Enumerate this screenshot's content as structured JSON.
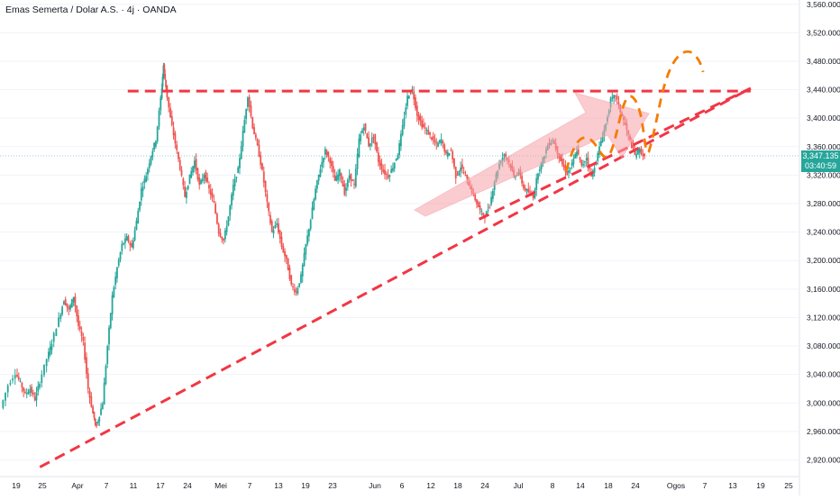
{
  "title": "Emas Semerta / Dolar A.S. · 4j · OANDA",
  "colors": {
    "up": "#26a69a",
    "down": "#ef5350",
    "trendline": "#f23645",
    "projection": "#f57c00",
    "arrow_fill": "#f7a1a8",
    "current_price": "#26a69a"
  },
  "current_price": {
    "value": "3,347.135",
    "countdown": "03:40:59"
  },
  "chart_data": {
    "type": "candlestick",
    "y_axis": {
      "ticks": [
        "3,560.000",
        "3,520.000",
        "3,480.000",
        "3,440.000",
        "3,400.000",
        "3,360.000",
        "3,320.000",
        "3,280.000",
        "3,240.000",
        "3,200.000",
        "3,160.000",
        "3,120.000",
        "3,080.000",
        "3,040.000",
        "3,000.000",
        "2,960.000",
        "2,920.000"
      ],
      "range": [
        2908,
        3566
      ]
    },
    "x_axis": {
      "labels": [
        "19",
        "25",
        "Apr",
        "7",
        "11",
        "17",
        "24",
        "Mei",
        "7",
        "13",
        "19",
        "23",
        "Jun",
        "6",
        "12",
        "18",
        "24",
        "Jul",
        "8",
        "14",
        "18",
        "24",
        "Ogos",
        "7",
        "13",
        "19",
        "25"
      ]
    },
    "price_path": [
      [
        0,
        2993
      ],
      [
        1.5,
        3025
      ],
      [
        3,
        3042
      ],
      [
        4,
        3028
      ],
      [
        5,
        3012
      ],
      [
        6,
        3020
      ],
      [
        7,
        3005
      ],
      [
        8,
        3030
      ],
      [
        9.5,
        3062
      ],
      [
        10.5,
        3085
      ],
      [
        12,
        3118
      ],
      [
        13,
        3145
      ],
      [
        14,
        3130
      ],
      [
        15,
        3150
      ],
      [
        16,
        3108
      ],
      [
        17,
        3085
      ],
      [
        18,
        3020
      ],
      [
        19,
        2985
      ],
      [
        19.5,
        2968
      ],
      [
        20,
        2975
      ],
      [
        21,
        3000
      ],
      [
        22,
        3080
      ],
      [
        23,
        3150
      ],
      [
        24,
        3190
      ],
      [
        25,
        3222
      ],
      [
        26,
        3232
      ],
      [
        27,
        3218
      ],
      [
        28,
        3255
      ],
      [
        29,
        3300
      ],
      [
        30,
        3320
      ],
      [
        31,
        3348
      ],
      [
        32,
        3370
      ],
      [
        33,
        3428
      ],
      [
        33.5,
        3474
      ],
      [
        34,
        3445
      ],
      [
        35,
        3400
      ],
      [
        36,
        3365
      ],
      [
        37,
        3330
      ],
      [
        38,
        3290
      ],
      [
        39,
        3318
      ],
      [
        40,
        3340
      ],
      [
        41,
        3305
      ],
      [
        42,
        3322
      ],
      [
        43,
        3300
      ],
      [
        44,
        3280
      ],
      [
        45,
        3240
      ],
      [
        46,
        3228
      ],
      [
        47,
        3262
      ],
      [
        48,
        3305
      ],
      [
        49,
        3328
      ],
      [
        50,
        3380
      ],
      [
        51,
        3432
      ],
      [
        52,
        3388
      ],
      [
        53,
        3360
      ],
      [
        54,
        3325
      ],
      [
        55,
        3280
      ],
      [
        56,
        3240
      ],
      [
        57,
        3252
      ],
      [
        58,
        3220
      ],
      [
        59,
        3200
      ],
      [
        60,
        3165
      ],
      [
        61,
        3155
      ],
      [
        62,
        3178
      ],
      [
        63,
        3222
      ],
      [
        64,
        3258
      ],
      [
        65,
        3300
      ],
      [
        66,
        3330
      ],
      [
        67,
        3355
      ],
      [
        68,
        3340
      ],
      [
        69,
        3312
      ],
      [
        70,
        3325
      ],
      [
        71,
        3295
      ],
      [
        72,
        3320
      ],
      [
        73,
        3305
      ],
      [
        74,
        3370
      ],
      [
        75,
        3390
      ],
      [
        76,
        3362
      ],
      [
        77,
        3375
      ],
      [
        78,
        3340
      ],
      [
        79,
        3325
      ],
      [
        80,
        3318
      ],
      [
        81,
        3332
      ],
      [
        82,
        3350
      ],
      [
        83,
        3388
      ],
      [
        84,
        3430
      ],
      [
        85,
        3440
      ],
      [
        86,
        3405
      ],
      [
        87,
        3390
      ],
      [
        88,
        3382
      ],
      [
        89,
        3372
      ],
      [
        90,
        3362
      ],
      [
        91,
        3370
      ],
      [
        92,
        3348
      ],
      [
        93,
        3355
      ],
      [
        94,
        3318
      ],
      [
        95,
        3332
      ],
      [
        96,
        3318
      ],
      [
        97,
        3302
      ],
      [
        98,
        3286
      ],
      [
        99,
        3270
      ],
      [
        100,
        3262
      ],
      [
        101,
        3278
      ],
      [
        102,
        3312
      ],
      [
        103,
        3336
      ],
      [
        104,
        3350
      ],
      [
        105,
        3338
      ],
      [
        106,
        3318
      ],
      [
        107,
        3325
      ],
      [
        108,
        3302
      ],
      [
        109,
        3296
      ],
      [
        110,
        3290
      ],
      [
        111,
        3325
      ],
      [
        112,
        3342
      ],
      [
        113,
        3362
      ],
      [
        114,
        3370
      ],
      [
        115,
        3352
      ],
      [
        116,
        3335
      ],
      [
        117,
        3322
      ],
      [
        118,
        3335
      ],
      [
        119,
        3355
      ],
      [
        120,
        3332
      ],
      [
        121,
        3345
      ],
      [
        122,
        3318
      ],
      [
        123,
        3340
      ],
      [
        124,
        3368
      ],
      [
        125,
        3392
      ],
      [
        126,
        3425
      ],
      [
        127,
        3432
      ],
      [
        128,
        3410
      ],
      [
        129,
        3390
      ],
      [
        130,
        3368
      ],
      [
        131,
        3348
      ],
      [
        132,
        3356
      ],
      [
        133,
        3344
      ]
    ],
    "annotations": [
      {
        "kind": "horizontal-dashed-line",
        "label": "resistance",
        "y": 3438,
        "x_from": 0.16,
        "x_to": 0.94
      },
      {
        "kind": "rising-dashed-line",
        "label": "ascending-support-1",
        "from": [
          0.05,
          2910
        ],
        "to": [
          0.94,
          3442
        ]
      },
      {
        "kind": "rising-dashed-line",
        "label": "ascending-support-2",
        "from": [
          0.6,
          3258
        ],
        "to": [
          0.94,
          3442
        ]
      },
      {
        "kind": "arrow",
        "label": "bullish-arrow"
      },
      {
        "kind": "dashed-curve",
        "label": "price-projection"
      }
    ]
  }
}
